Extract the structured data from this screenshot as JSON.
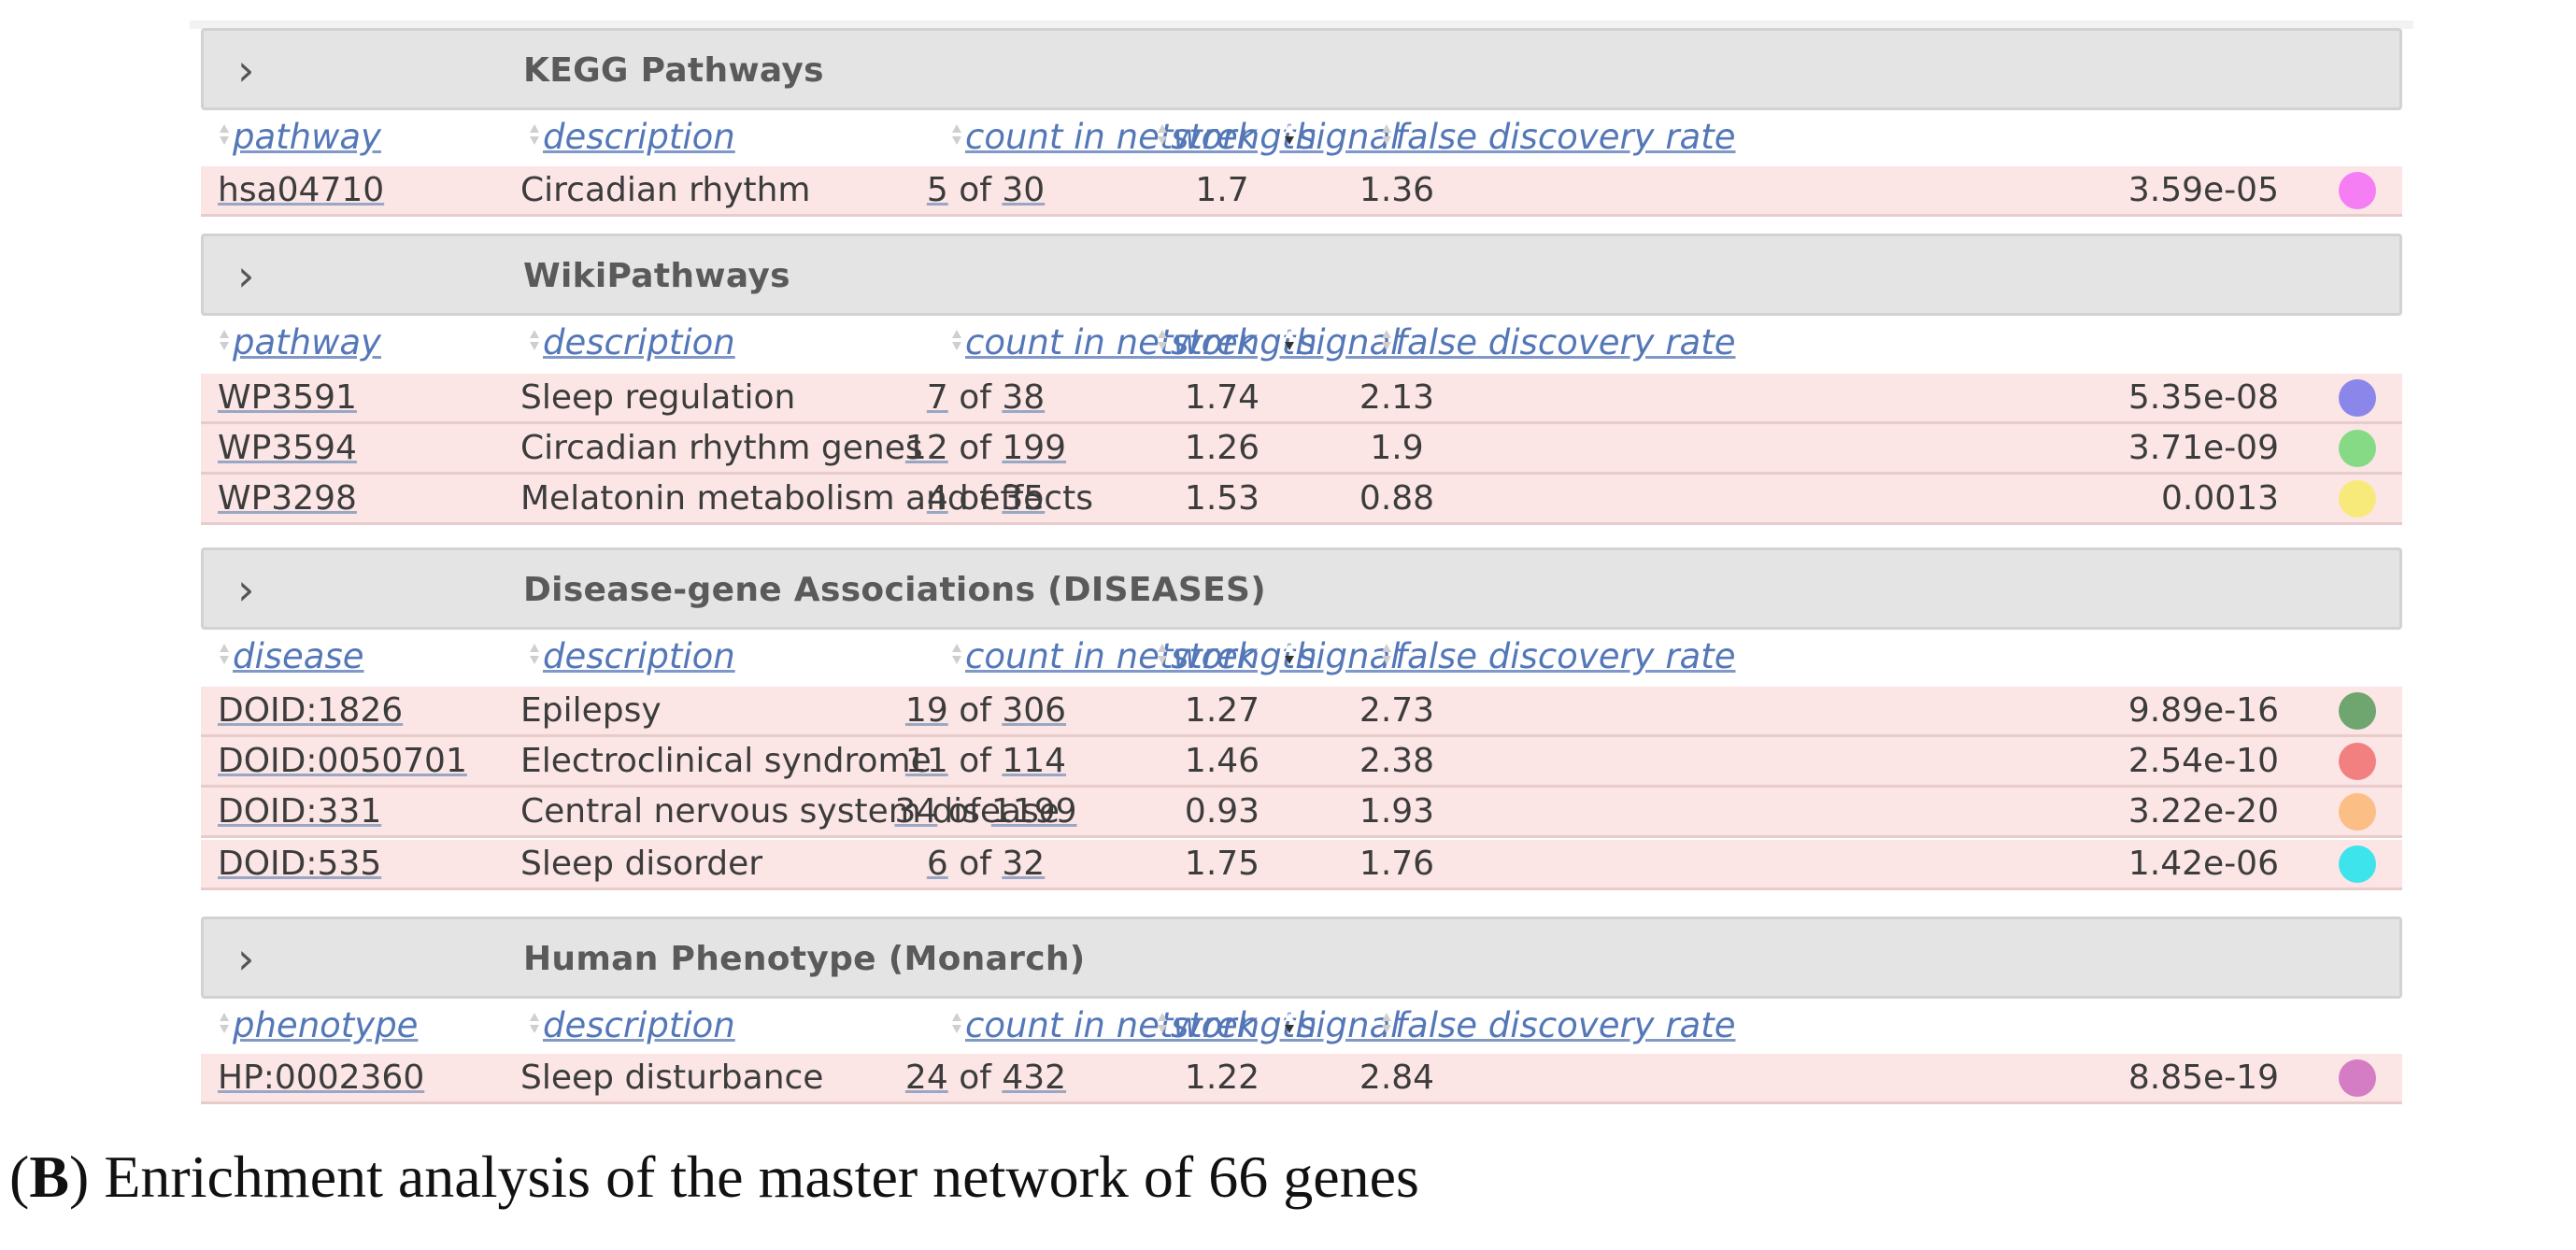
{
  "columns": {
    "description": "description",
    "count": "count in network",
    "strength": "strength",
    "signal": "signal",
    "fdr": "false discovery rate"
  },
  "sections": [
    {
      "title": "KEGG Pathways",
      "id_header": "pathway",
      "rows": [
        {
          "id": "hsa04710",
          "description": "Circadian rhythm",
          "count": "5",
          "of": "of",
          "total": "30",
          "strength": "1.7",
          "signal": "1.36",
          "fdr": "3.59e-05",
          "color": "#f57ef5"
        }
      ]
    },
    {
      "title": "WikiPathways",
      "id_header": "pathway",
      "rows": [
        {
          "id": "WP3591",
          "description": "Sleep regulation",
          "count": "7",
          "of": "of",
          "total": "38",
          "strength": "1.74",
          "signal": "2.13",
          "fdr": "5.35e-08",
          "color": "#8b86ea"
        },
        {
          "id": "WP3594",
          "description": "Circadian rhythm genes",
          "count": "12",
          "of": "of",
          "total": "199",
          "strength": "1.26",
          "signal": "1.9",
          "fdr": "3.71e-09",
          "color": "#86da86"
        },
        {
          "id": "WP3298",
          "description": "Melatonin metabolism and effects",
          "count": "4",
          "of": "of",
          "total": "35",
          "strength": "1.53",
          "signal": "0.88",
          "fdr": "0.0013",
          "color": "#f7ea7a"
        }
      ]
    },
    {
      "title": "Disease-gene Associations (DISEASES)",
      "id_header": "disease",
      "rows": [
        {
          "id": "DOID:1826",
          "description": "Epilepsy",
          "count": "19",
          "of": "of",
          "total": "306",
          "strength": "1.27",
          "signal": "2.73",
          "fdr": "9.89e-16",
          "color": "#6fa56f"
        },
        {
          "id": "DOID:0050701",
          "description": "Electroclinical syndrome",
          "count": "11",
          "of": "of",
          "total": "114",
          "strength": "1.46",
          "signal": "2.38",
          "fdr": "2.54e-10",
          "color": "#f28080"
        },
        {
          "id": "DOID:331",
          "description": "Central nervous system disease",
          "count": "34",
          "of": "of",
          "total": "1199",
          "strength": "0.93",
          "signal": "1.93",
          "fdr": "3.22e-20",
          "color": "#fbbe84"
        },
        {
          "id": "DOID:535",
          "description": "Sleep disorder",
          "count": "6",
          "of": "of",
          "total": "32",
          "strength": "1.75",
          "signal": "1.76",
          "fdr": "1.42e-06",
          "color": "#3ee4ec"
        }
      ]
    },
    {
      "title": "Human Phenotype (Monarch)",
      "id_header": "phenotype",
      "rows": [
        {
          "id": "HP:0002360",
          "description": "Sleep disturbance",
          "count": "24",
          "of": "of",
          "total": "432",
          "strength": "1.22",
          "signal": "2.84",
          "fdr": "8.85e-19",
          "color": "#d47cc4"
        }
      ]
    }
  ],
  "caption": {
    "open": "(",
    "letter": "B",
    "text": ") Enrichment analysis of the master network of 66 genes"
  }
}
